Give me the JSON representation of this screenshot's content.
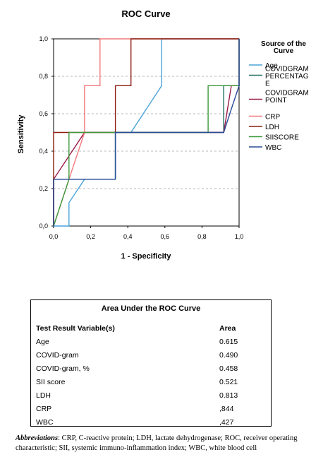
{
  "chart_data": {
    "type": "line",
    "title": "ROC Curve",
    "xlabel": "1 - Specificity",
    "ylabel": "Sensitivity",
    "xlim": [
      0,
      1
    ],
    "ylim": [
      0,
      1
    ],
    "x_ticks": [
      "0,0",
      "0,2",
      "0,4",
      "0,6",
      "0,8",
      "1,0"
    ],
    "y_ticks": [
      "0,0",
      "0,2",
      "0,4",
      "0,6",
      "0,8",
      "1,0"
    ],
    "grid": "horizontal dashed",
    "legend_title": "Source of the Curve",
    "legend_placement": "right",
    "series": [
      {
        "name": "Age",
        "color": "#4aa3d9",
        "points": [
          [
            0,
            0
          ],
          [
            0.083,
            0
          ],
          [
            0.083,
            0.125
          ],
          [
            0.167,
            0.25
          ],
          [
            0.333,
            0.25
          ],
          [
            0.333,
            0.5
          ],
          [
            0.417,
            0.5
          ],
          [
            0.5,
            0.625
          ],
          [
            0.583,
            0.75
          ],
          [
            0.583,
            1
          ],
          [
            1,
            1
          ]
        ]
      },
      {
        "name": "COVIDGRAM PERCENTAGE",
        "color": "#1f6f5f",
        "points": [
          [
            0,
            0
          ],
          [
            0,
            0.25
          ],
          [
            0.333,
            0.25
          ],
          [
            0.333,
            0.5
          ],
          [
            0.917,
            0.5
          ],
          [
            0.917,
            0.75
          ],
          [
            1,
            0.75
          ],
          [
            1,
            1
          ]
        ]
      },
      {
        "name": "COVIDGRAM POINT",
        "color": "#9a1a4a",
        "points": [
          [
            0,
            0
          ],
          [
            0,
            0.25
          ],
          [
            0.167,
            0.5
          ],
          [
            0.917,
            0.5
          ],
          [
            0.958,
            0.75
          ],
          [
            1,
            0.75
          ],
          [
            1,
            1
          ]
        ]
      },
      {
        "name": "CRP",
        "color": "#f2787a",
        "points": [
          [
            0,
            0
          ],
          [
            0.083,
            0.25
          ],
          [
            0.167,
            0.5
          ],
          [
            0.167,
            0.75
          ],
          [
            0.25,
            0.75
          ],
          [
            0.25,
            1
          ],
          [
            1,
            1
          ]
        ]
      },
      {
        "name": "LDH",
        "color": "#8b1d10",
        "points": [
          [
            0,
            0
          ],
          [
            0,
            0.5
          ],
          [
            0.167,
            0.5
          ],
          [
            0.333,
            0.5
          ],
          [
            0.333,
            0.75
          ],
          [
            0.417,
            0.75
          ],
          [
            0.417,
            1
          ],
          [
            1,
            1
          ]
        ]
      },
      {
        "name": "SIISCORE",
        "color": "#3c9a3c",
        "points": [
          [
            0,
            0
          ],
          [
            0.083,
            0.25
          ],
          [
            0.083,
            0.5
          ],
          [
            0.833,
            0.5
          ],
          [
            0.833,
            0.75
          ],
          [
            1,
            0.75
          ],
          [
            1,
            1
          ]
        ]
      },
      {
        "name": "WBC",
        "color": "#2a4a9a",
        "points": [
          [
            0,
            0
          ],
          [
            0,
            0.25
          ],
          [
            0.333,
            0.25
          ],
          [
            0.333,
            0.5
          ],
          [
            0.917,
            0.5
          ],
          [
            0.958,
            0.625
          ],
          [
            1,
            0.75
          ],
          [
            1,
            1
          ]
        ]
      }
    ]
  },
  "auc_table": {
    "title": "Area Under the ROC Curve",
    "headers": [
      "Test Result Variable(s)",
      "Area"
    ],
    "rows": [
      [
        "Age",
        "0.615"
      ],
      [
        "COVID-gram",
        "0.490"
      ],
      [
        "COVID-gram, %",
        "0.458"
      ],
      [
        "SII score",
        "0.521"
      ],
      [
        "LDH",
        "0.813"
      ],
      [
        "CRP",
        ",844"
      ],
      [
        "WBC",
        ",427"
      ]
    ]
  },
  "footnote": {
    "lead": "Abbreviations",
    "text": ": CRP, C-reactive protein; LDH, lactate dehydrogenase; ROC, receiver operating characteristic; SII, systemic immuno-inflammation index; WBC, white blood cell"
  }
}
